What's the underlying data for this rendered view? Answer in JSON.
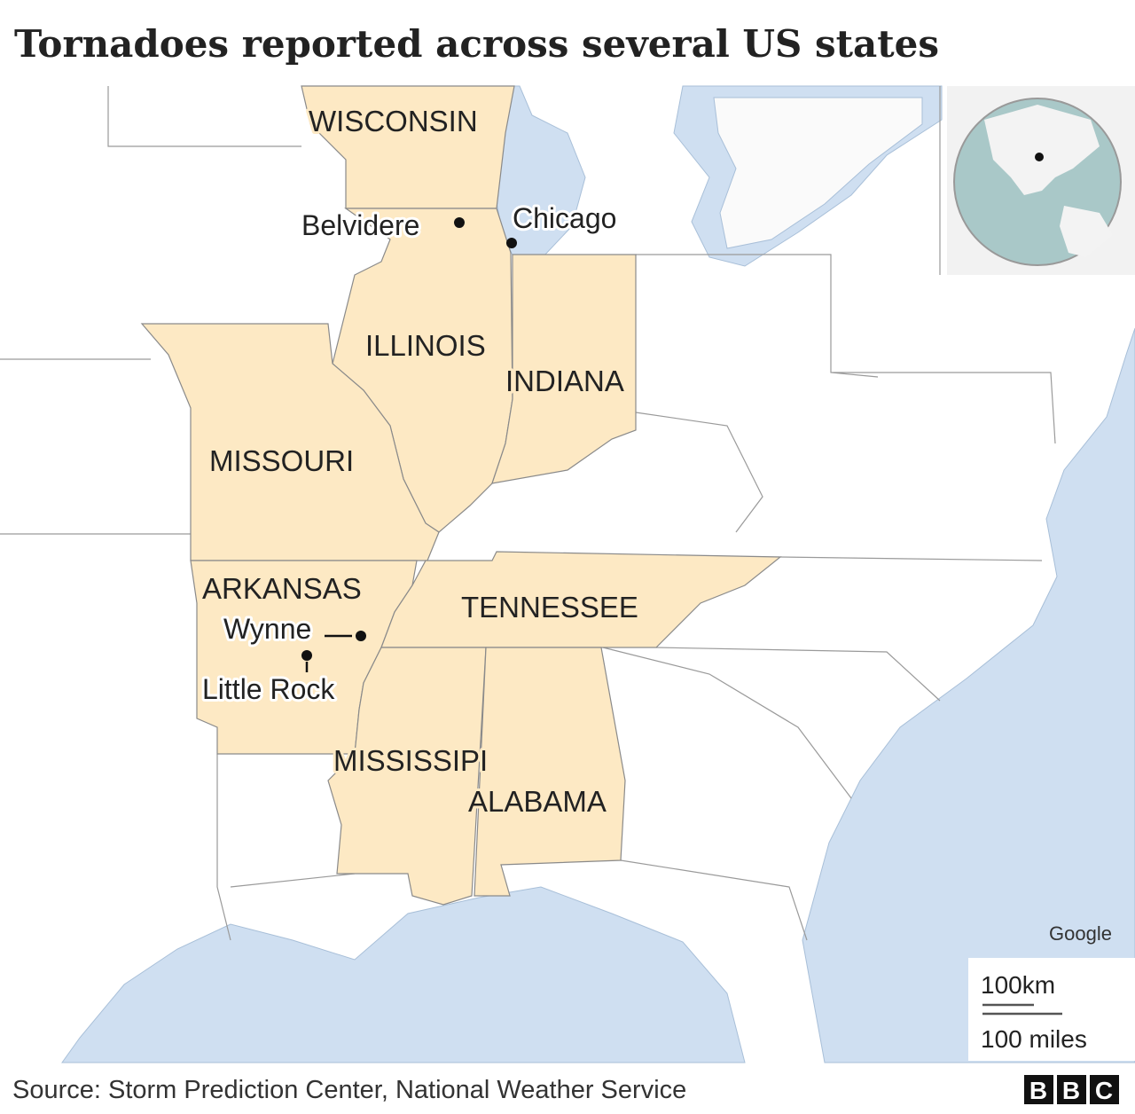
{
  "title": "Tornadoes reported across several US states",
  "states": [
    "WISCONSIN",
    "ILLINOIS",
    "INDIANA",
    "MISSOURI",
    "ARKANSAS",
    "TENNESSEE",
    "MISSISSIPI",
    "ALABAMA"
  ],
  "cities": [
    "Belvidere",
    "Chicago",
    "Wynne",
    "Little Rock"
  ],
  "attribution": "Google",
  "scale": {
    "km": "100km",
    "miles": "100 miles"
  },
  "source": "Source: Storm Prediction Center, National Weather Service",
  "logo": [
    "B",
    "B",
    "C"
  ]
}
